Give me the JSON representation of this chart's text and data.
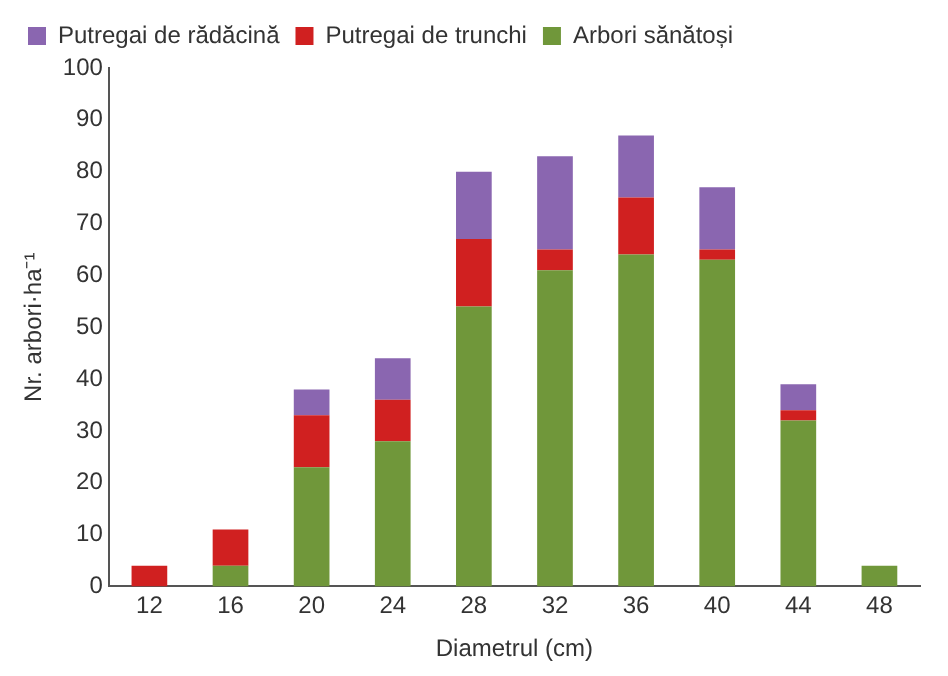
{
  "chart_data": {
    "type": "bar",
    "stacked": true,
    "xlabel": "Diametrul (cm)",
    "ylabel": "Nr. arbori·ha⁻¹",
    "categories": [
      "12",
      "16",
      "20",
      "24",
      "28",
      "32",
      "36",
      "40",
      "44",
      "48"
    ],
    "series": [
      {
        "name": "Arbori sănătoși",
        "color": "#70973a",
        "values": [
          0,
          4,
          23,
          28,
          54,
          61,
          64,
          63,
          32,
          4
        ]
      },
      {
        "name": "Putregai de trunchi",
        "color": "#d02020",
        "values": [
          4,
          7,
          10,
          8,
          13,
          4,
          11,
          2,
          2,
          0
        ]
      },
      {
        "name": "Putregai de rădăcină",
        "color": "#8a66b0",
        "values": [
          0,
          0,
          5,
          8,
          13,
          18,
          12,
          12,
          5,
          0
        ]
      }
    ],
    "ylim": [
      0,
      100
    ],
    "yticks": [
      0,
      10,
      20,
      30,
      40,
      50,
      60,
      70,
      80,
      90,
      100
    ],
    "grid": false,
    "legend": "top left"
  }
}
